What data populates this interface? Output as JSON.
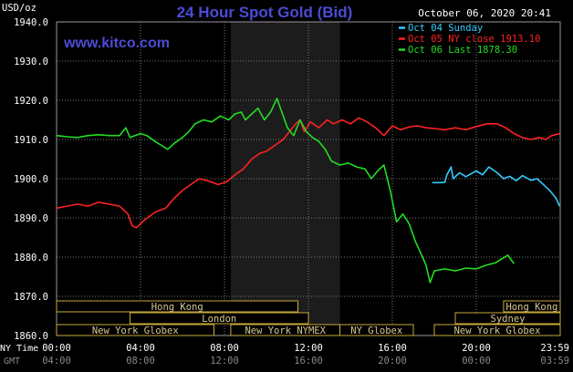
{
  "title": "24 Hour Spot Gold (Bid)",
  "timestamp": "October 06, 2020 20:41",
  "unit_label": "USD/oz",
  "website": "www.kitco.com",
  "legend": [
    {
      "label": "Oct 04 Sunday",
      "color": "#33ccff"
    },
    {
      "label": "Oct 05 NY close 1913.10",
      "color": "#ff2222"
    },
    {
      "label": "Oct 06 Last 1878.30",
      "color": "#22dd22"
    }
  ],
  "time_rows": {
    "ny_label": "NY Time",
    "gmt_label": "GMT",
    "ny_ticks": [
      "00:00",
      "04:00",
      "08:00",
      "12:00",
      "16:00",
      "20:00",
      "23:59"
    ],
    "gmt_ticks": [
      "04:00",
      "08:00",
      "12:00",
      "16:00",
      "20:00",
      "00:00",
      "03:59"
    ]
  },
  "sessions": [
    {
      "label": "Hong Kong",
      "row": 0,
      "start": 0,
      "end": 11.5
    },
    {
      "label": "Hong Kong",
      "row": 0,
      "start": 21.3,
      "end": 24
    },
    {
      "label": "London",
      "row": 1,
      "start": 3.5,
      "end": 12.0
    },
    {
      "label": "Sydney",
      "row": 1,
      "start": 19.0,
      "end": 24
    },
    {
      "label": "New York Globex",
      "row": 2,
      "start": 0,
      "end": 7.5
    },
    {
      "label": "New York NYMEX",
      "row": 2,
      "start": 8.3,
      "end": 13.5
    },
    {
      "label": "NY Globex",
      "row": 2,
      "start": 13.5,
      "end": 17.0
    },
    {
      "label": "New York Globex",
      "row": 2,
      "start": 18.0,
      "end": 24
    }
  ],
  "chart_data": {
    "type": "line",
    "title": "24 Hour Spot Gold (Bid)",
    "ylabel": "USD/oz",
    "xlabel": "NY Time / GMT",
    "ylim": [
      1860,
      1940
    ],
    "y_ticks": [
      "1860.0",
      "1870.0",
      "1880.0",
      "1890.0",
      "1900.0",
      "1910.0",
      "1920.0",
      "1930.0",
      "1940.0"
    ],
    "xlim_hours": [
      0,
      24
    ],
    "highlight_hours": [
      8.3,
      13.5
    ],
    "grid": true,
    "legend_position": "top-right",
    "series": [
      {
        "name": "Oct 04 Sunday",
        "color": "#33ccff",
        "points": [
          [
            17.9,
            1899
          ],
          [
            18.3,
            1899
          ],
          [
            18.5,
            1899.1
          ],
          [
            18.6,
            1901
          ],
          [
            18.8,
            1903
          ],
          [
            18.9,
            1900
          ],
          [
            19.2,
            1901.5
          ],
          [
            19.5,
            1900.5
          ],
          [
            20.0,
            1902
          ],
          [
            20.3,
            1901
          ],
          [
            20.6,
            1903
          ],
          [
            21.0,
            1901.5
          ],
          [
            21.3,
            1900
          ],
          [
            21.6,
            1900.6
          ],
          [
            21.9,
            1899.5
          ],
          [
            22.2,
            1900.8
          ],
          [
            22.6,
            1899.6
          ],
          [
            22.9,
            1900
          ],
          [
            23.2,
            1898.5
          ],
          [
            23.5,
            1897
          ],
          [
            23.8,
            1895
          ],
          [
            23.98,
            1893
          ]
        ]
      },
      {
        "name": "Oct 05 NY close 1913.10",
        "color": "#ff2222",
        "points": [
          [
            0,
            1892.5
          ],
          [
            0.5,
            1893
          ],
          [
            1.0,
            1893.5
          ],
          [
            1.5,
            1893
          ],
          [
            2.0,
            1894
          ],
          [
            2.5,
            1893.5
          ],
          [
            3.0,
            1893
          ],
          [
            3.4,
            1891
          ],
          [
            3.6,
            1888
          ],
          [
            3.8,
            1887.5
          ],
          [
            4.2,
            1889.5
          ],
          [
            4.7,
            1891.5
          ],
          [
            5.2,
            1892.5
          ],
          [
            5.6,
            1895
          ],
          [
            6.0,
            1897
          ],
          [
            6.4,
            1898.5
          ],
          [
            6.8,
            1900
          ],
          [
            7.2,
            1899.5
          ],
          [
            7.7,
            1898.5
          ],
          [
            8.1,
            1899.2
          ],
          [
            8.5,
            1901
          ],
          [
            8.9,
            1902.5
          ],
          [
            9.3,
            1905
          ],
          [
            9.7,
            1906.5
          ],
          [
            10.0,
            1907
          ],
          [
            10.4,
            1908.5
          ],
          [
            10.8,
            1910
          ],
          [
            11.1,
            1912
          ],
          [
            11.4,
            1914
          ],
          [
            11.6,
            1915
          ],
          [
            11.8,
            1912
          ],
          [
            12.1,
            1914.5
          ],
          [
            12.5,
            1913
          ],
          [
            12.9,
            1915
          ],
          [
            13.2,
            1914
          ],
          [
            13.6,
            1915
          ],
          [
            14.0,
            1914
          ],
          [
            14.4,
            1915.5
          ],
          [
            14.8,
            1914.5
          ],
          [
            15.2,
            1913
          ],
          [
            15.6,
            1911
          ],
          [
            16.0,
            1913.5
          ],
          [
            16.4,
            1912.5
          ],
          [
            16.8,
            1913.2
          ],
          [
            17.2,
            1913.5
          ],
          [
            17.6,
            1913
          ],
          [
            18.0,
            1912.8
          ],
          [
            18.5,
            1912.5
          ],
          [
            19.0,
            1913
          ],
          [
            19.5,
            1912.5
          ],
          [
            20.0,
            1913.3
          ],
          [
            20.5,
            1914
          ],
          [
            21.0,
            1914
          ],
          [
            21.4,
            1913
          ],
          [
            21.8,
            1911.5
          ],
          [
            22.2,
            1910.5
          ],
          [
            22.6,
            1910
          ],
          [
            23.0,
            1910.5
          ],
          [
            23.3,
            1910
          ],
          [
            23.6,
            1911
          ],
          [
            23.98,
            1911.5
          ]
        ]
      },
      {
        "name": "Oct 06 Last 1878.30",
        "color": "#22dd22",
        "points": [
          [
            0,
            1911
          ],
          [
            0.5,
            1910.7
          ],
          [
            1.0,
            1910.5
          ],
          [
            1.5,
            1911
          ],
          [
            2.0,
            1911.2
          ],
          [
            2.5,
            1911
          ],
          [
            3.0,
            1911
          ],
          [
            3.3,
            1913
          ],
          [
            3.5,
            1910.5
          ],
          [
            4.0,
            1911.5
          ],
          [
            4.3,
            1911
          ],
          [
            4.7,
            1909.5
          ],
          [
            5.0,
            1908.5
          ],
          [
            5.3,
            1907.5
          ],
          [
            5.6,
            1909
          ],
          [
            6.0,
            1910.5
          ],
          [
            6.3,
            1912
          ],
          [
            6.6,
            1914
          ],
          [
            7.0,
            1915
          ],
          [
            7.4,
            1914.5
          ],
          [
            7.8,
            1916
          ],
          [
            8.2,
            1915
          ],
          [
            8.5,
            1916.5
          ],
          [
            8.8,
            1917
          ],
          [
            9.0,
            1915
          ],
          [
            9.3,
            1916.5
          ],
          [
            9.6,
            1918
          ],
          [
            9.9,
            1915
          ],
          [
            10.2,
            1917
          ],
          [
            10.5,
            1920.5
          ],
          [
            10.8,
            1916
          ],
          [
            11.0,
            1913
          ],
          [
            11.3,
            1911
          ],
          [
            11.6,
            1915
          ],
          [
            11.9,
            1912
          ],
          [
            12.2,
            1910.5
          ],
          [
            12.5,
            1909.5
          ],
          [
            12.8,
            1907.5
          ],
          [
            13.1,
            1904.5
          ],
          [
            13.5,
            1903.5
          ],
          [
            13.9,
            1904
          ],
          [
            14.3,
            1903
          ],
          [
            14.7,
            1902.5
          ],
          [
            15.0,
            1900
          ],
          [
            15.3,
            1902
          ],
          [
            15.6,
            1903.5
          ],
          [
            15.9,
            1897
          ],
          [
            16.2,
            1889
          ],
          [
            16.5,
            1891
          ],
          [
            16.8,
            1888.5
          ],
          [
            17.1,
            1884
          ],
          [
            17.4,
            1880.5
          ],
          [
            17.6,
            1878
          ],
          [
            17.8,
            1873.5
          ],
          [
            18.0,
            1876.5
          ],
          [
            18.5,
            1877
          ],
          [
            19.0,
            1876.5
          ],
          [
            19.5,
            1877.2
          ],
          [
            20.0,
            1877
          ],
          [
            20.5,
            1878
          ],
          [
            20.9,
            1878.5
          ],
          [
            21.2,
            1879.5
          ],
          [
            21.5,
            1880.5
          ],
          [
            21.8,
            1878.3
          ]
        ]
      }
    ]
  }
}
